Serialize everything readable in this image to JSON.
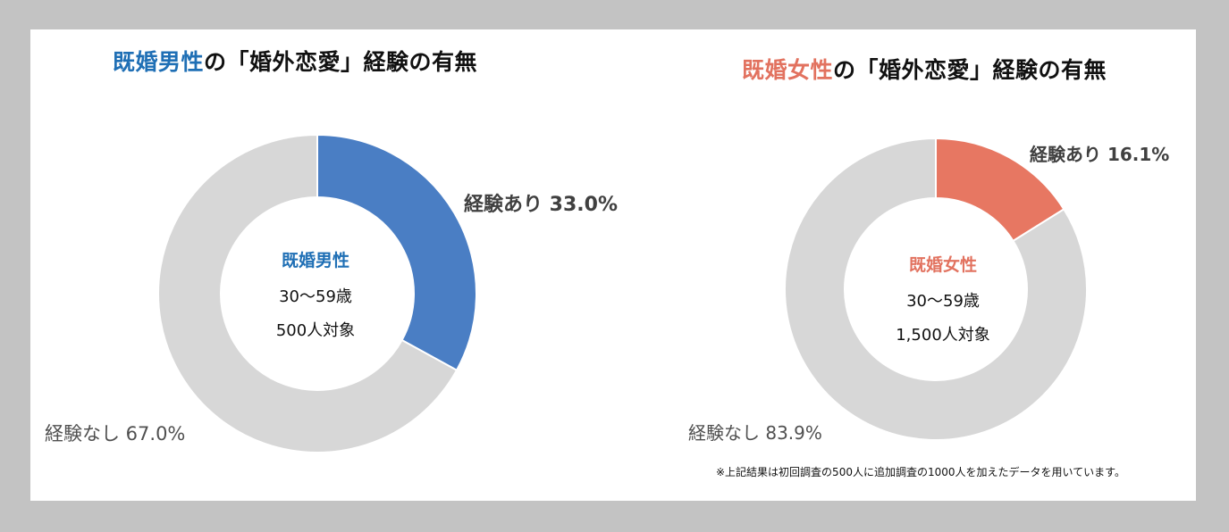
{
  "chart_data": [
    {
      "type": "pie",
      "title_highlight": "既婚男性",
      "title_rest": "の「婚外恋愛」経験の有無",
      "highlight_color": "#1f6fb5",
      "center_label": {
        "group": "既婚男性",
        "age": "30〜59歳",
        "sample": "500人対象"
      },
      "slices": [
        {
          "label": "経験あり 33.0%",
          "value": 33.0,
          "color": "#4a7ec4"
        },
        {
          "label": "経験なし 67.0%",
          "value": 67.0,
          "color": "#d7d7d7"
        }
      ]
    },
    {
      "type": "pie",
      "title_highlight": "既婚女性",
      "title_rest": "の「婚外恋愛」経験の有無",
      "highlight_color": "#e2725f",
      "center_label": {
        "group": "既婚女性",
        "age": "30〜59歳",
        "sample": "1,500人対象"
      },
      "slices": [
        {
          "label": "経験あり 16.1%",
          "value": 16.1,
          "color": "#e77762"
        },
        {
          "label": "経験なし 83.9%",
          "value": 83.9,
          "color": "#d7d7d7"
        }
      ]
    }
  ],
  "footnote": "※上記結果は初回調査の500人に追加調査の1000人を加えたデータを用いています。"
}
